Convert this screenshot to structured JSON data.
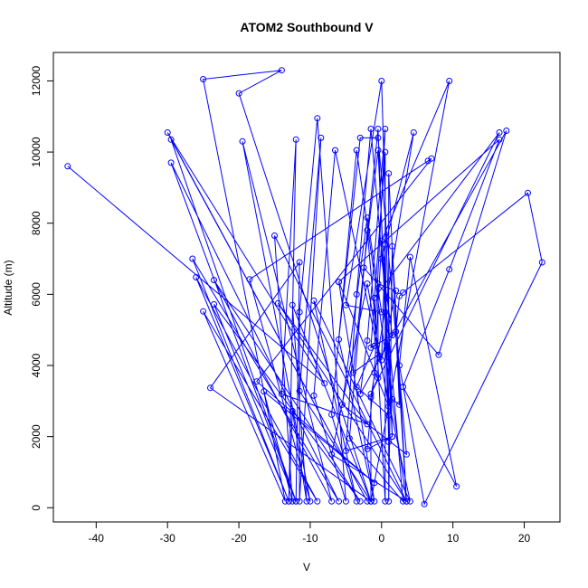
{
  "chart_data": {
    "type": "line",
    "title": "ATOM2 Southbound V",
    "xlabel": "V",
    "ylabel": "Altitude (m)",
    "xlim": [
      -46,
      25
    ],
    "ylim": [
      -400,
      12800
    ],
    "xticks": [
      -40,
      -30,
      -20,
      -10,
      0,
      10,
      20
    ],
    "yticks": [
      0,
      2000,
      4000,
      6000,
      8000,
      10000,
      12000
    ],
    "grid": false,
    "legend": "none",
    "series_color": "#0000ff",
    "series": [
      {
        "points": [
          [
            -44,
            9600
          ],
          [
            -8,
            3500
          ],
          [
            -30,
            10550
          ],
          [
            -2,
            180
          ],
          [
            -29.5,
            10350
          ],
          [
            -12,
            180
          ],
          [
            -29.5,
            9700
          ],
          [
            -6,
            180
          ],
          [
            -26.5,
            7000
          ],
          [
            -13,
            180
          ],
          [
            -26,
            6480
          ],
          [
            -9,
            180
          ],
          [
            -25,
            5520
          ],
          [
            -13.5,
            180
          ],
          [
            -25,
            12050
          ],
          [
            -14,
            12300
          ],
          [
            -20,
            11650
          ],
          [
            -1.5,
            180
          ],
          [
            -24,
            3370
          ],
          [
            -11.5,
            6900
          ],
          [
            -12,
            180
          ],
          [
            -23.5,
            5720
          ],
          [
            -3,
            180
          ],
          [
            -23.5,
            6400
          ],
          [
            -7,
            180
          ],
          [
            -19.5,
            10300
          ],
          [
            -10,
            180
          ],
          [
            -18.5,
            6420
          ],
          [
            6.5,
            9750
          ],
          [
            7,
            9820
          ],
          [
            -17.5,
            3550
          ],
          [
            -1,
            700
          ],
          [
            -16.5,
            3270
          ],
          [
            -12.5,
            180
          ],
          [
            -15,
            7650
          ],
          [
            3.5,
            180
          ],
          [
            -14.5,
            5750
          ],
          [
            -2,
            2350
          ],
          [
            -14,
            3200
          ],
          [
            -12,
            10350
          ],
          [
            -13,
            180
          ],
          [
            -12.5,
            2720
          ],
          [
            -10.5,
            180
          ],
          [
            -12.5,
            5700
          ],
          [
            -1.5,
            180
          ],
          [
            -11.5,
            3280
          ],
          [
            -8.5,
            10400
          ],
          [
            -11.5,
            180
          ],
          [
            -11.5,
            5500
          ],
          [
            -9,
            10950
          ],
          [
            -5,
            180
          ],
          [
            -9.5,
            3150
          ],
          [
            -6.5,
            10050
          ],
          [
            4,
            180
          ],
          [
            -9.5,
            5820
          ],
          [
            -3.5,
            180
          ],
          [
            -7,
            2620
          ],
          [
            -3.5,
            10050
          ],
          [
            3.5,
            180
          ],
          [
            -7,
            1500
          ],
          [
            -2,
            6300
          ],
          [
            1,
            2850
          ],
          [
            -6,
            6350
          ],
          [
            -1,
            180
          ],
          [
            -6,
            4730
          ],
          [
            -3,
            10400
          ],
          [
            -0.5,
            10400
          ],
          [
            3.5,
            1500
          ],
          [
            -5.5,
            2900
          ],
          [
            -2,
            8150
          ],
          [
            0,
            5500
          ],
          [
            -5,
            5700
          ],
          [
            0,
            12000
          ],
          [
            1.5,
            2000
          ],
          [
            -5,
            1600
          ],
          [
            -3.5,
            6000
          ],
          [
            -1.5,
            10650
          ],
          [
            3,
            180
          ],
          [
            -4.5,
            1950
          ],
          [
            -2,
            7800
          ],
          [
            -0.5,
            4300
          ],
          [
            -4,
            3800
          ],
          [
            -0.5,
            10650
          ],
          [
            1,
            2600
          ],
          [
            -3.5,
            3400
          ],
          [
            -1,
            4550
          ],
          [
            0.5,
            10650
          ],
          [
            -2,
            4700
          ],
          [
            -3,
            3200
          ],
          [
            17.5,
            10600
          ],
          [
            8,
            4300
          ],
          [
            -2.5,
            6750
          ],
          [
            -0.5,
            10050
          ],
          [
            1.5,
            2000
          ],
          [
            -2,
            1650
          ],
          [
            -1,
            3800
          ],
          [
            0,
            7500
          ],
          [
            9.5,
            12000
          ],
          [
            -1.5,
            180
          ],
          [
            -1.5,
            3100
          ],
          [
            4.5,
            10550
          ],
          [
            0,
            7000
          ],
          [
            1.5,
            4850
          ],
          [
            -1.5,
            4500
          ],
          [
            0.5,
            10000
          ],
          [
            0.5,
            180
          ],
          [
            -1,
            5900
          ],
          [
            16.5,
            10550
          ],
          [
            -1.5,
            3200
          ],
          [
            -0.5,
            3650
          ],
          [
            -0.5,
            6300
          ],
          [
            2,
            6100
          ],
          [
            0,
            4150
          ],
          [
            0.5,
            7400
          ],
          [
            1,
            1850
          ],
          [
            0.5,
            5500
          ],
          [
            1.5,
            3050
          ],
          [
            2.5,
            2900
          ],
          [
            1,
            9400
          ],
          [
            1,
            180
          ],
          [
            1.5,
            7350
          ],
          [
            3.5,
            180
          ],
          [
            2,
            4950
          ],
          [
            2.5,
            5950
          ],
          [
            3,
            6050
          ],
          [
            20.5,
            8850
          ],
          [
            22.5,
            6900
          ],
          [
            6,
            100
          ],
          [
            2.5,
            4000
          ],
          [
            4,
            7050
          ],
          [
            10.5,
            600
          ],
          [
            3,
            3400
          ],
          [
            9.5,
            6700
          ],
          [
            16.5,
            10350
          ],
          [
            -6,
            6350
          ]
        ]
      }
    ]
  }
}
